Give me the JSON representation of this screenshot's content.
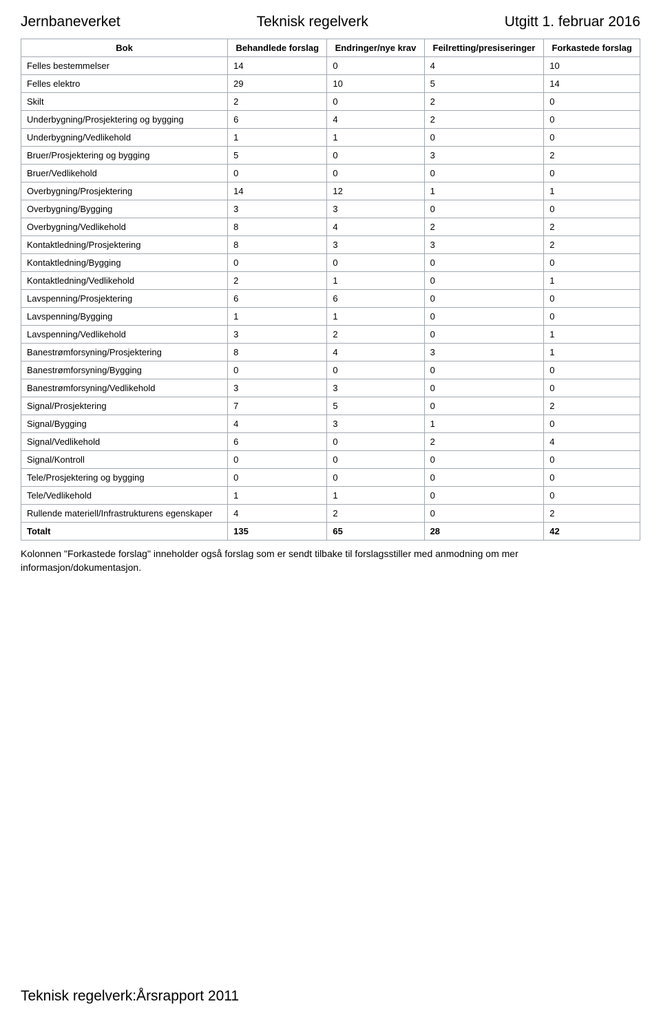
{
  "header": {
    "left": "Jernbaneverket",
    "center": "Teknisk regelverk",
    "right": "Utgitt 1. februar 2016"
  },
  "table": {
    "columns": [
      "Bok",
      "Behandlede forslag",
      "Endringer/nye krav",
      "Feilretting/presiseringer",
      "Forkastede forslag"
    ],
    "rows": [
      [
        "Felles bestemmelser",
        "14",
        "0",
        "4",
        "10"
      ],
      [
        "Felles elektro",
        "29",
        "10",
        "5",
        "14"
      ],
      [
        "Skilt",
        "2",
        "0",
        "2",
        "0"
      ],
      [
        "Underbygning/Prosjektering og bygging",
        "6",
        "4",
        "2",
        "0"
      ],
      [
        "Underbygning/Vedlikehold",
        "1",
        "1",
        "0",
        "0"
      ],
      [
        "Bruer/Prosjektering og bygging",
        "5",
        "0",
        "3",
        "2"
      ],
      [
        "Bruer/Vedlikehold",
        "0",
        "0",
        "0",
        "0"
      ],
      [
        "Overbygning/Prosjektering",
        "14",
        "12",
        "1",
        "1"
      ],
      [
        "Overbygning/Bygging",
        "3",
        "3",
        "0",
        "0"
      ],
      [
        "Overbygning/Vedlikehold",
        "8",
        "4",
        "2",
        "2"
      ],
      [
        "Kontaktledning/Prosjektering",
        "8",
        "3",
        "3",
        "2"
      ],
      [
        "Kontaktledning/Bygging",
        "0",
        "0",
        "0",
        "0"
      ],
      [
        "Kontaktledning/Vedlikehold",
        "2",
        "1",
        "0",
        "1"
      ],
      [
        "Lavspenning/Prosjektering",
        "6",
        "6",
        "0",
        "0"
      ],
      [
        "Lavspenning/Bygging",
        "1",
        "1",
        "0",
        "0"
      ],
      [
        "Lavspenning/Vedlikehold",
        "3",
        "2",
        "0",
        "1"
      ],
      [
        "Banestrømforsyning/Prosjektering",
        "8",
        "4",
        "3",
        "1"
      ],
      [
        "Banestrømforsyning/Bygging",
        "0",
        "0",
        "0",
        "0"
      ],
      [
        "Banestrømforsyning/Vedlikehold",
        "3",
        "3",
        "0",
        "0"
      ],
      [
        "Signal/Prosjektering",
        "7",
        "5",
        "0",
        "2"
      ],
      [
        "Signal/Bygging",
        "4",
        "3",
        "1",
        "0"
      ],
      [
        "Signal/Vedlikehold",
        "6",
        "0",
        "2",
        "4"
      ],
      [
        "Signal/Kontroll",
        "0",
        "0",
        "0",
        "0"
      ],
      [
        "Tele/Prosjektering og bygging",
        "0",
        "0",
        "0",
        "0"
      ],
      [
        "Tele/Vedlikehold",
        "1",
        "1",
        "0",
        "0"
      ],
      [
        "Rullende materiell/Infrastrukturens egenskaper",
        "4",
        "2",
        "0",
        "2"
      ]
    ],
    "total": [
      "Totalt",
      "135",
      "65",
      "28",
      "42"
    ]
  },
  "note": "Kolonnen \"Forkastede forslag\" inneholder også forslag som er sendt tilbake til forslagsstiller med anmodning om mer informasjon/dokumentasjon.",
  "footer": "Teknisk regelverk:Årsrapport 2011"
}
